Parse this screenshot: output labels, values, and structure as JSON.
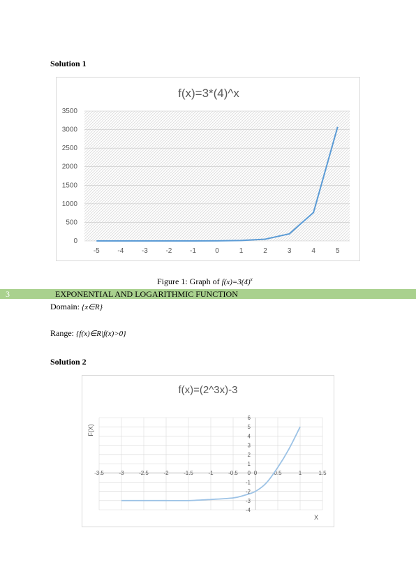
{
  "solution1": {
    "heading": "Solution 1"
  },
  "solution2": {
    "heading": "Solution 2"
  },
  "figure1": {
    "caption_prefix": "Figure 1: Graph of ",
    "caption_math": "f(x)=3(4)",
    "caption_sup": "x"
  },
  "section": {
    "number": "3",
    "title": "EXPONENTIAL AND LOGARITHMIC FUNCTION"
  },
  "domain": {
    "label": "Domain: ",
    "math": "{x∈R}"
  },
  "range": {
    "label": "Range: ",
    "math": "{f(x)∈R|f(x)>0}"
  },
  "colors": {
    "line1": "#5b9bd5",
    "line2": "#9dc3e6",
    "band": "#a9d18e",
    "grid": "#d9d9d9"
  },
  "chart_data": [
    {
      "type": "line",
      "title": "f(x)=3*(4)^x",
      "xlabel": "",
      "ylabel": "",
      "categories": [
        "-5",
        "-4",
        "-3",
        "-2",
        "-1",
        "0",
        "1",
        "2",
        "3",
        "4",
        "5"
      ],
      "series": [
        {
          "values": [
            0.003,
            0.012,
            0.047,
            0.19,
            0.75,
            3,
            12,
            48,
            192,
            768,
            3072
          ]
        }
      ],
      "ylim": [
        0,
        3500
      ],
      "yticks": [
        "0",
        "500",
        "1000",
        "1500",
        "2000",
        "2500",
        "3000",
        "3500"
      ],
      "grid": true,
      "plot_area_pattern": "hatched"
    },
    {
      "type": "line",
      "title": "f(x)=(2^3x)-3",
      "xlabel": "X",
      "ylabel": "F(X)",
      "series": [
        {
          "x": [
            -3,
            -2.5,
            -2,
            -1.5,
            -1,
            -0.5,
            -0.25,
            0,
            0.25,
            0.5,
            0.75,
            1
          ],
          "y": [
            -3,
            -3,
            -3,
            -3,
            -2.88,
            -2.71,
            -2.43,
            -2,
            -1.05,
            0.6,
            2.6,
            5
          ]
        }
      ],
      "xlim": [
        -3.5,
        1.5
      ],
      "ylim": [
        -4,
        6
      ],
      "xticks": [
        "-3.5",
        "-3",
        "-2.5",
        "-2",
        "-1.5",
        "-1",
        "-0.5",
        "0",
        "0.5",
        "1",
        "1.5"
      ],
      "yticks": [
        "-4",
        "-3",
        "-2",
        "-1",
        "0",
        "1",
        "2",
        "3",
        "4",
        "5",
        "6"
      ],
      "grid": true
    }
  ]
}
